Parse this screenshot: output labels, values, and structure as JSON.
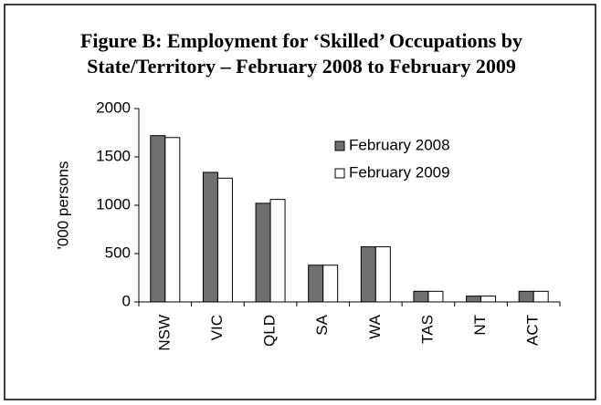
{
  "chart_data": {
    "type": "bar",
    "title": [
      "Figure B: Employment for ‘Skilled’ Occupations by",
      "State/Territory – February 2008 to February 2009"
    ],
    "y_label": "'000 persons",
    "categories": [
      "NSW",
      "VIC",
      "QLD",
      "SA",
      "WA",
      "TAS",
      "NT",
      "ACT"
    ],
    "series": [
      {
        "name": "February 2008",
        "color": "#707070",
        "values": [
          1720,
          1340,
          1020,
          380,
          570,
          110,
          60,
          110
        ]
      },
      {
        "name": "February 2009",
        "color": "#ffffff",
        "values": [
          1700,
          1280,
          1060,
          380,
          570,
          110,
          60,
          110
        ]
      }
    ],
    "ylim": [
      0,
      2000
    ],
    "yticks": [
      0,
      500,
      1000,
      1500,
      2000
    ],
    "grid": false,
    "legend": "top-right"
  }
}
